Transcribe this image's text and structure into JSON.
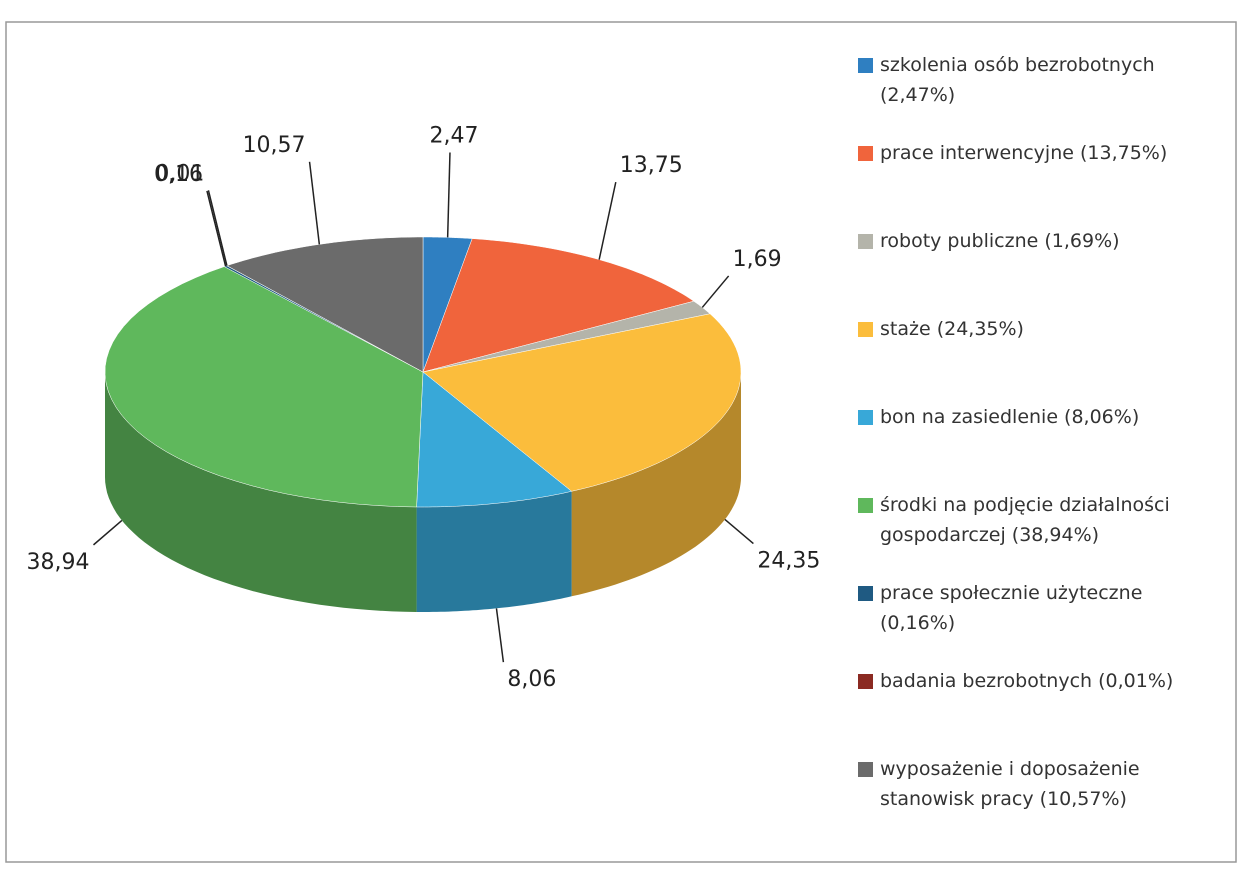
{
  "chart_data": {
    "type": "pie",
    "categories": [
      "szkolenia osób bezrobotnych (2,47%)",
      "prace interwencyjne (13,75%)",
      "roboty publiczne (1,69%)",
      "staże (24,35%)",
      "bon na zasiedlenie (8,06%)",
      "środki  na podjęcie działalności gospodarczej (38,94%)",
      "prace społecznie użyteczne (0,16%)",
      "badania bezrobotnych (0,01%)",
      "wyposażenie i doposażenie stanowisk pracy (10,57%)"
    ],
    "values": [
      2.47,
      13.75,
      1.69,
      24.35,
      8.06,
      38.94,
      0.16,
      0.01,
      10.57
    ],
    "value_labels": [
      "2,47",
      "13,75",
      "1,69",
      "24,35",
      "8,06",
      "38,94",
      "0,16",
      "0,01",
      "10,57"
    ],
    "colors": [
      "#2f7fc1",
      "#f0643c",
      "#b4b4aa",
      "#fbbd3c",
      "#38a8d8",
      "#5fb85c",
      "#1f5a82",
      "#8b2a22",
      "#6b6b6b"
    ],
    "legend": "right"
  }
}
